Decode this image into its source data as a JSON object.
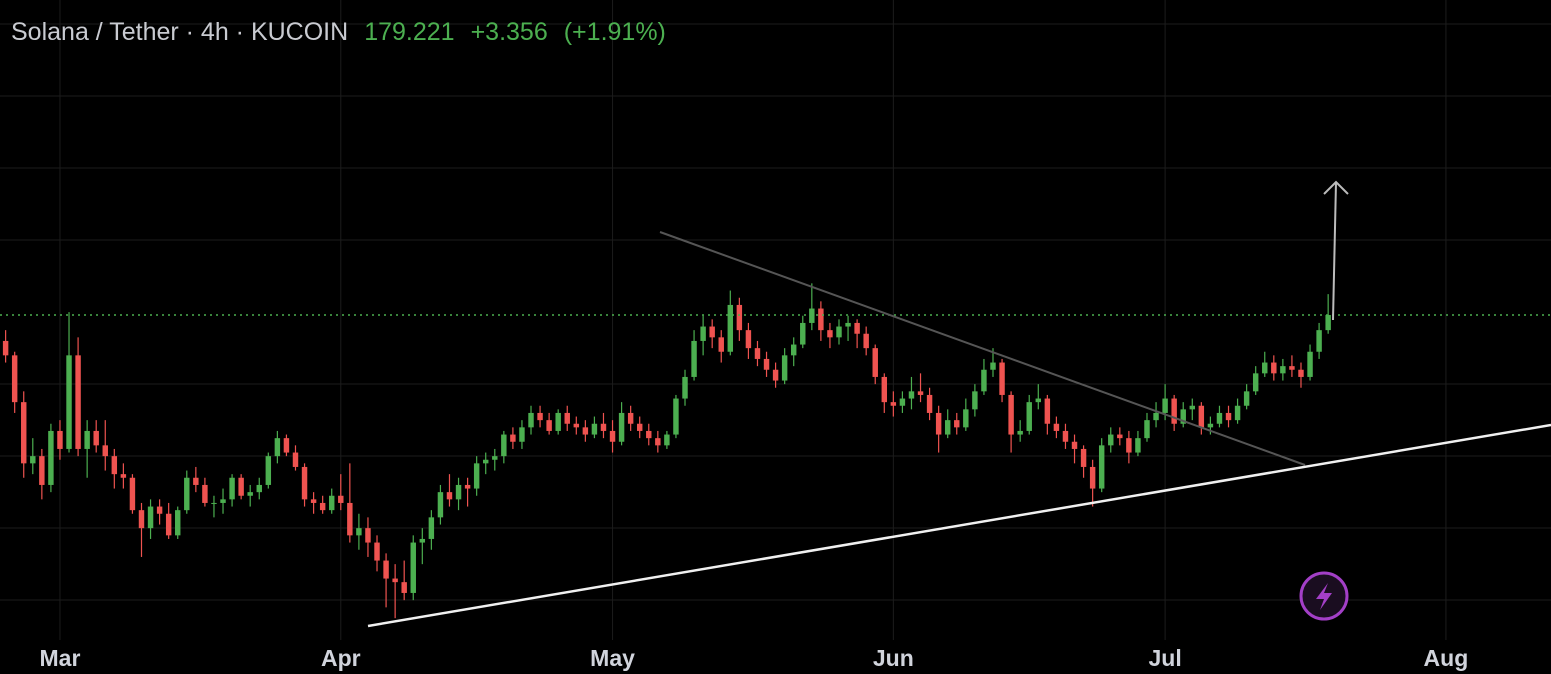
{
  "chart_data": {
    "type": "candlestick",
    "title": "Solana / Tether · 4h · KUCOIN",
    "price": 179.221,
    "change": "+3.356",
    "change_percent": "(+1.91%)",
    "header_color": "#4caf50",
    "up_color": "#4caf50",
    "down_color": "#ef5350",
    "grid": true,
    "xlim": [
      -0.62,
      170.6
    ],
    "ylim": [
      93.1,
      266.7
    ],
    "xticks": [
      {
        "value": 6,
        "label": "Mar"
      },
      {
        "value": 37,
        "label": "Apr"
      },
      {
        "value": 67,
        "label": "May"
      },
      {
        "value": 98,
        "label": "Jun"
      },
      {
        "value": 128,
        "label": "Jul"
      },
      {
        "value": 159,
        "label": "Aug"
      }
    ],
    "open": [
      172,
      168,
      155,
      138,
      140,
      132,
      147,
      142,
      168,
      142,
      147,
      143,
      140,
      135,
      134,
      125,
      120,
      126,
      124,
      118,
      125,
      134,
      132,
      127,
      127,
      128,
      134,
      129,
      130,
      132,
      140,
      145,
      141,
      137,
      128,
      127,
      125,
      129,
      127,
      118,
      120,
      116,
      111,
      106,
      105,
      102,
      116,
      117,
      123,
      130,
      128,
      132,
      131,
      138,
      139,
      140,
      146,
      144,
      148,
      152,
      150,
      147,
      152,
      149,
      148,
      146,
      149,
      147,
      144,
      152,
      149,
      147,
      145,
      143,
      146,
      156,
      162,
      172,
      176,
      173,
      169,
      182,
      175,
      170,
      167,
      164,
      161,
      168,
      171,
      177,
      181,
      175,
      173,
      176,
      177,
      174,
      170,
      162,
      155,
      154,
      156,
      158,
      157,
      152,
      146,
      150,
      148,
      153,
      158,
      164,
      166,
      157,
      146,
      147,
      155,
      156,
      149,
      147,
      144,
      142,
      137,
      131,
      143,
      146,
      145,
      141,
      145,
      150,
      152,
      156,
      149,
      153,
      154,
      148,
      149,
      152,
      150,
      154,
      158,
      163,
      166,
      163,
      165,
      164,
      162,
      169,
      175
    ],
    "high": [
      175,
      169,
      158,
      145,
      142,
      149,
      150,
      180,
      173,
      150,
      150,
      150,
      142,
      138,
      135,
      127,
      128,
      128,
      127,
      126,
      136,
      137,
      134,
      129,
      131,
      135,
      135,
      132,
      134,
      141,
      147,
      146,
      143,
      138,
      130,
      129,
      131,
      135,
      138,
      124,
      123,
      118,
      113,
      110,
      111,
      118,
      120,
      125,
      132,
      135,
      134,
      134,
      140,
      141,
      142,
      147,
      148,
      150,
      154,
      154,
      152,
      153,
      154,
      151,
      150,
      151,
      152,
      150,
      155,
      154,
      151,
      149,
      147,
      147,
      157,
      164,
      175,
      179,
      178,
      175,
      186,
      184,
      177,
      172,
      169,
      166,
      170,
      173,
      179,
      188,
      183,
      177,
      178,
      179,
      178,
      176,
      171,
      163,
      158,
      158,
      162,
      163,
      159,
      154,
      153,
      152,
      156,
      160,
      167,
      170,
      167,
      158,
      150,
      157,
      160,
      157,
      151,
      149,
      146,
      143,
      139,
      145,
      148,
      148,
      147,
      147,
      152,
      155,
      160,
      157,
      155,
      156,
      155,
      151,
      154,
      154,
      156,
      160,
      165,
      169,
      168,
      167,
      168,
      166,
      171,
      177,
      185
    ],
    "low": [
      166,
      152,
      134,
      135,
      128,
      130,
      139,
      141,
      140,
      134,
      141,
      136,
      131,
      131,
      124,
      112,
      117,
      121,
      117,
      117,
      124,
      130,
      126,
      123,
      124,
      126,
      128,
      126,
      128,
      131,
      138,
      140,
      136,
      126,
      124,
      124,
      124,
      125,
      116,
      114,
      112,
      108,
      98,
      95,
      100,
      100,
      110,
      114,
      121,
      126,
      125,
      126,
      129,
      135,
      136,
      138,
      142,
      142,
      146,
      148,
      146,
      146,
      147,
      146,
      144,
      145,
      145,
      141,
      143,
      147,
      145,
      143,
      141,
      142,
      145,
      154,
      161,
      168,
      170,
      166,
      168,
      172,
      167,
      165,
      162,
      159,
      160,
      165,
      170,
      175,
      172,
      170,
      171,
      172,
      170,
      168,
      160,
      152,
      151,
      152,
      153,
      155,
      150,
      141,
      145,
      146,
      147,
      151,
      157,
      162,
      155,
      141,
      144,
      146,
      153,
      146,
      145,
      142,
      138,
      134,
      126,
      130,
      141,
      143,
      138,
      140,
      144,
      148,
      150,
      147,
      148,
      150,
      146,
      146,
      148,
      148,
      149,
      153,
      157,
      162,
      161,
      161,
      162,
      159,
      161,
      167,
      174
    ],
    "close": [
      168,
      155,
      138,
      140,
      132,
      147,
      142,
      168,
      142,
      147,
      143,
      140,
      135,
      134,
      125,
      120,
      126,
      124,
      118,
      125,
      134,
      132,
      127,
      127,
      128,
      134,
      129,
      130,
      132,
      140,
      145,
      141,
      137,
      128,
      127,
      125,
      129,
      127,
      118,
      120,
      116,
      111,
      106,
      105,
      102,
      116,
      117,
      123,
      130,
      128,
      132,
      131,
      138,
      139,
      140,
      146,
      144,
      148,
      152,
      150,
      147,
      152,
      149,
      148,
      146,
      149,
      147,
      144,
      152,
      149,
      147,
      145,
      143,
      146,
      156,
      162,
      172,
      176,
      173,
      169,
      182,
      175,
      170,
      167,
      164,
      161,
      168,
      171,
      177,
      181,
      175,
      173,
      176,
      177,
      174,
      170,
      162,
      155,
      154,
      156,
      158,
      157,
      152,
      146,
      150,
      148,
      153,
      158,
      164,
      166,
      157,
      146,
      147,
      155,
      156,
      149,
      147,
      144,
      142,
      137,
      131,
      143,
      146,
      145,
      141,
      145,
      150,
      152,
      156,
      149,
      153,
      154,
      148,
      149,
      152,
      150,
      154,
      158,
      163,
      166,
      163,
      165,
      164,
      162,
      169,
      175,
      179.2
    ]
  }
}
